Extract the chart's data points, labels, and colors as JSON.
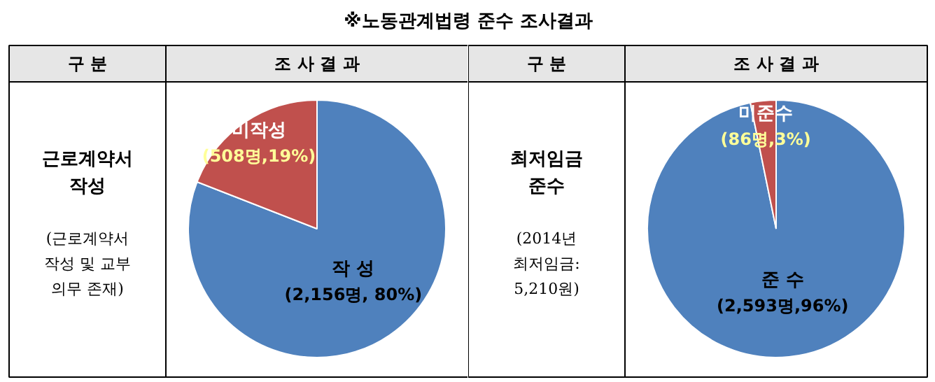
{
  "chart_data": [
    {
      "type": "pie",
      "title": "※노동관계법령 준수 조사결과",
      "categories": [
        "작 성",
        "미작성"
      ],
      "values": [
        2156,
        508
      ],
      "colors": [
        "#4f81bd",
        "#c0504d"
      ],
      "value_labels": [
        "(2,156명, 80%)",
        "(508명,19%)"
      ],
      "annotations": [
        "구 분",
        "조 사 결 과",
        "근로계약서\n작성",
        "(근로계약서\n작성 및 교부\n의무 존재)"
      ]
    },
    {
      "type": "pie",
      "categories": [
        "준 수",
        "미준수"
      ],
      "values": [
        2593,
        86
      ],
      "colors": [
        "#4f81bd",
        "#c0504d"
      ],
      "value_labels": [
        "(2,593명,96%)",
        "(86명,3%)"
      ],
      "annotations": [
        "구 분",
        "조 사 결 과",
        "최저임금\n준수",
        "(2014년\n최저임금:\n5,210원)"
      ]
    }
  ]
}
